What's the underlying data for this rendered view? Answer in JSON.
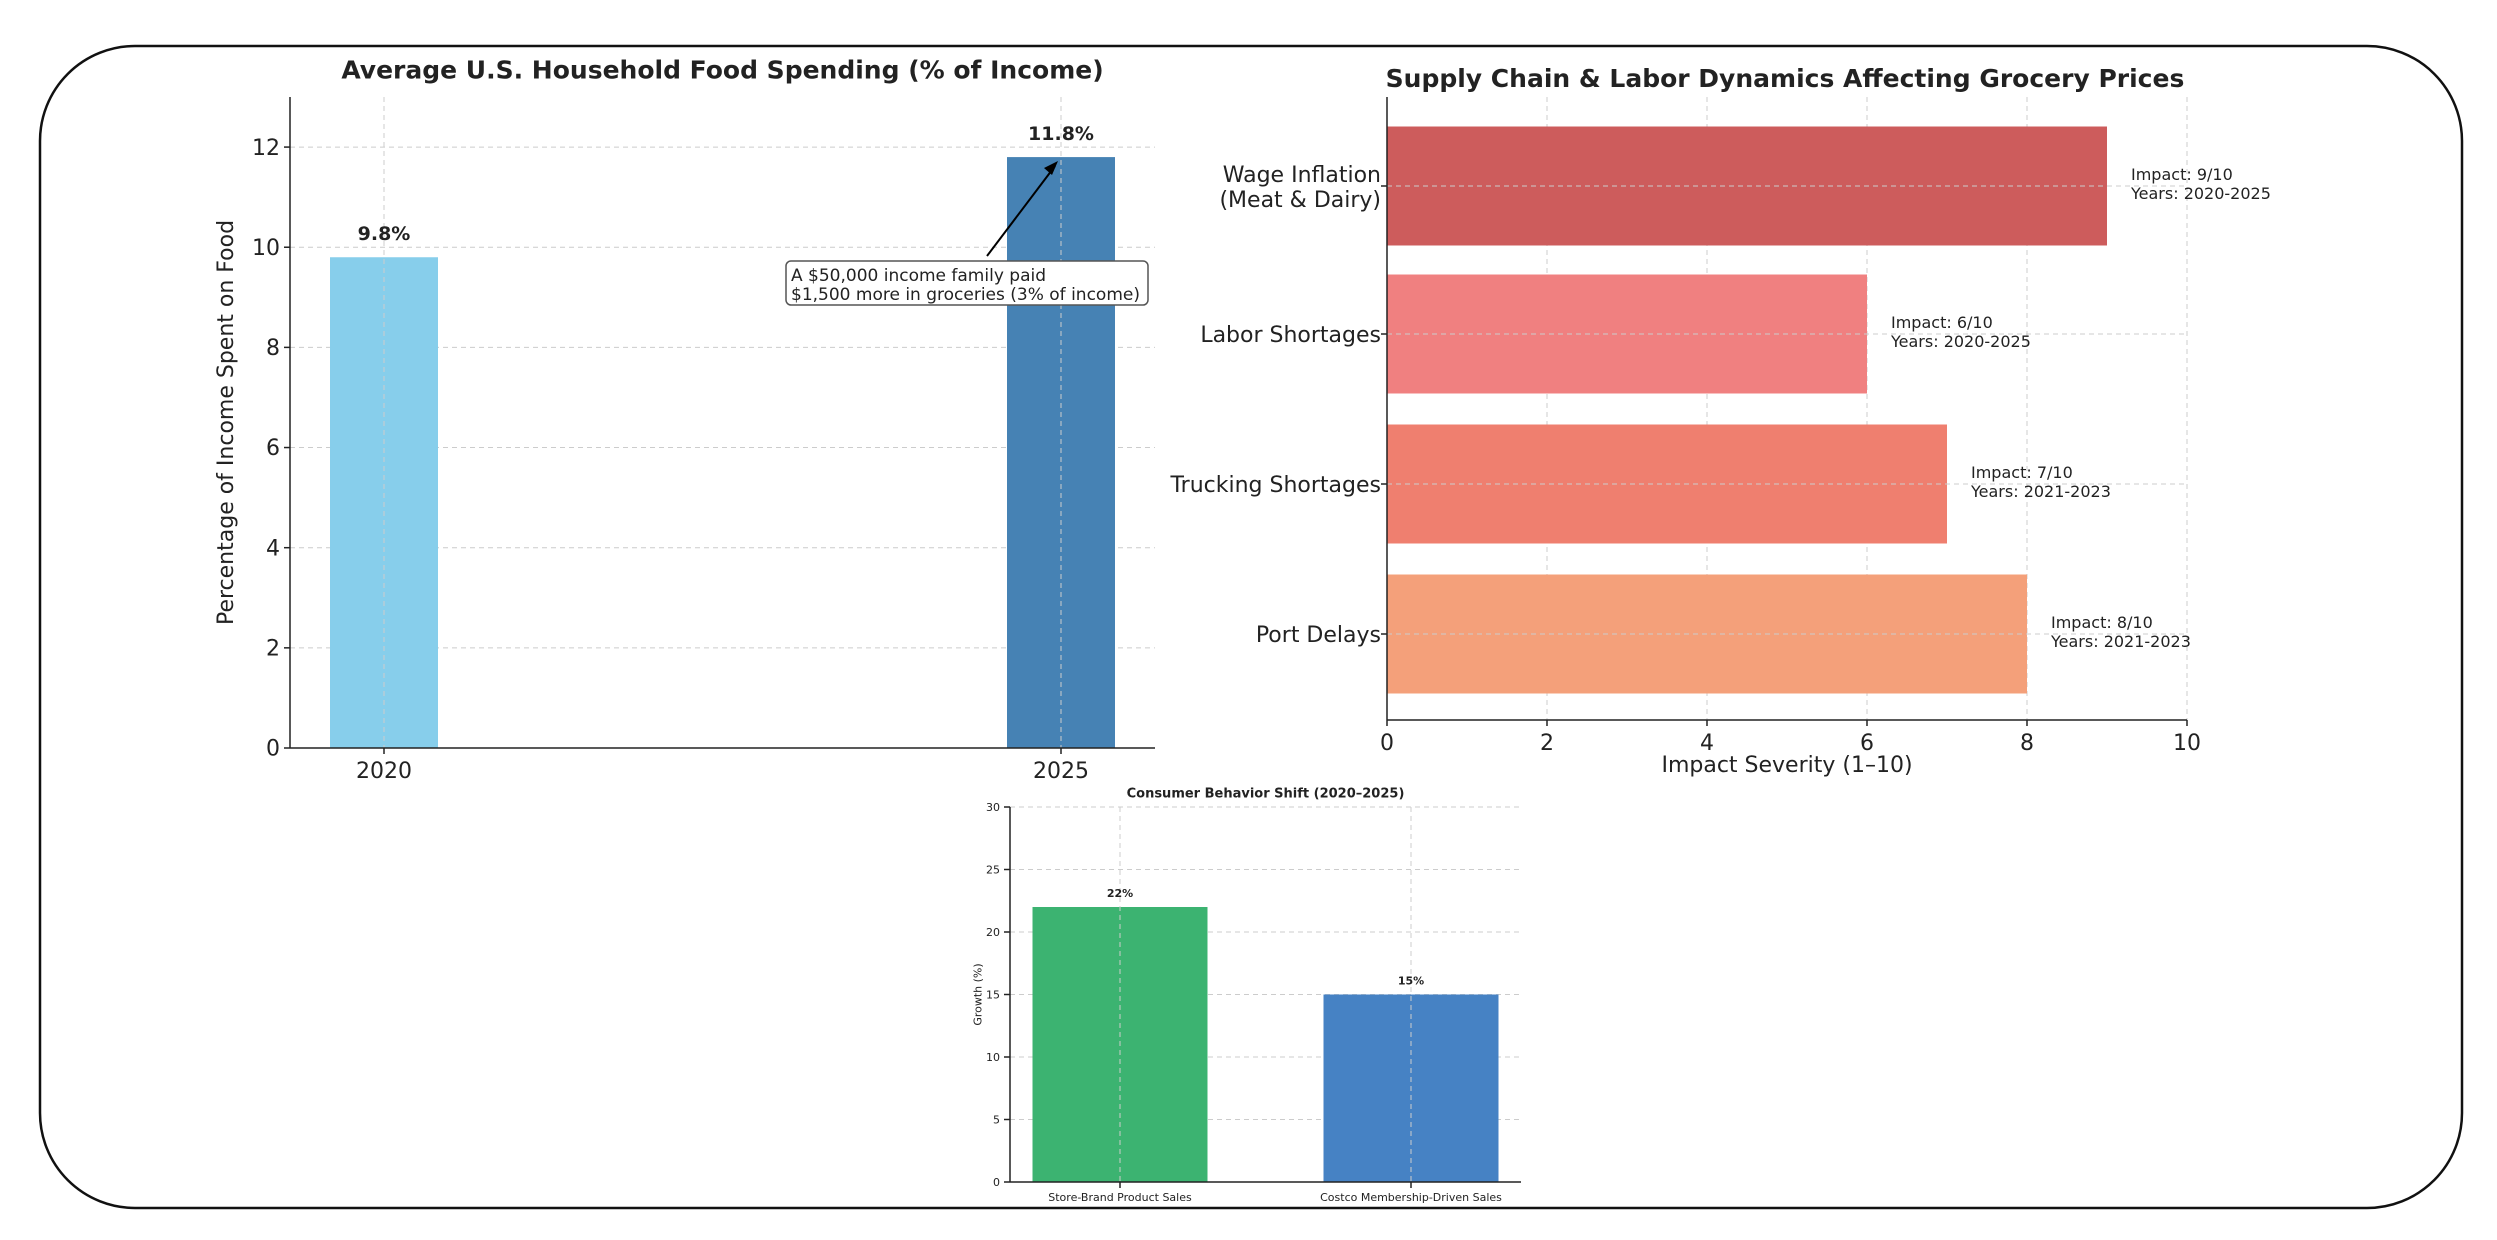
{
  "chart_data": [
    {
      "type": "bar",
      "title": "Average U.S. Household Food Spending (% of Income)",
      "xlabel": "",
      "ylabel": "Percentage of Income Spent on Food",
      "categories": [
        "2020",
        "2025"
      ],
      "values": [
        9.8,
        11.8
      ],
      "data_labels": [
        "9.8%",
        "11.8%"
      ],
      "colors": [
        "#87CEEB",
        "#4682B4"
      ],
      "ylim": [
        0,
        13
      ],
      "yticks": [
        0,
        2,
        4,
        6,
        8,
        10,
        12
      ],
      "grid": true,
      "annotation": {
        "text_lines": [
          "A $50,000 income family paid",
          "$1,500 more in groceries (3% of income)"
        ],
        "points_to": {
          "category": "2025",
          "value": 11.8
        }
      }
    },
    {
      "type": "bar",
      "orientation": "horizontal",
      "title": "Supply Chain & Labor Dynamics Affecting Grocery Prices",
      "xlabel": "Impact Severity (1–10)",
      "ylabel": "",
      "categories": [
        "Wage Inflation\n(Meat & Dairy)",
        "Labor Shortages",
        "Trucking Shortages",
        "Port Delays"
      ],
      "values": [
        9,
        6,
        7,
        8
      ],
      "data_labels": [
        [
          "Impact: 9/10",
          "Years: 2020-2025"
        ],
        [
          "Impact: 6/10",
          "Years: 2020-2025"
        ],
        [
          "Impact: 7/10",
          "Years: 2021-2023"
        ],
        [
          "Impact: 8/10",
          "Years: 2021-2023"
        ]
      ],
      "colors": [
        "#CD5C5C",
        "#F08080",
        "#EF7F6F",
        "#F4A07A"
      ],
      "xlim": [
        0,
        10
      ],
      "xticks": [
        0,
        2,
        4,
        6,
        8,
        10
      ],
      "grid": true
    },
    {
      "type": "bar",
      "title": "Consumer Behavior Shift (2020–2025)",
      "xlabel": "",
      "ylabel": "Growth (%)",
      "categories": [
        "Store-Brand Product Sales",
        "Costco Membership-Driven Sales"
      ],
      "values": [
        22,
        15
      ],
      "data_labels": [
        "22%",
        "15%"
      ],
      "colors": [
        "#3CB371",
        "#4682C4"
      ],
      "ylim": [
        0,
        30
      ],
      "yticks": [
        0,
        5,
        10,
        15,
        20,
        25,
        30
      ],
      "grid": true
    }
  ]
}
